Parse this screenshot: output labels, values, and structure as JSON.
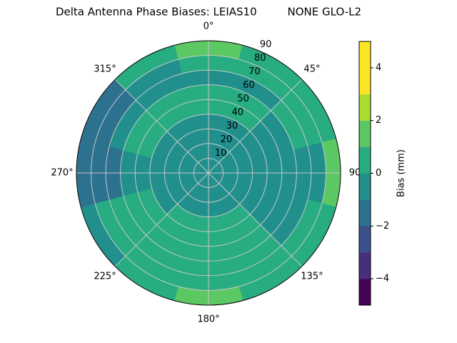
{
  "chart_data": {
    "type": "polar-contour",
    "title": "Delta Antenna Phase Biases: LEIAS10         NONE GLO-L2",
    "azimuth": [
      0,
      30,
      60,
      90,
      120,
      150,
      180,
      210,
      240,
      270,
      300,
      330
    ],
    "zenith": [
      0,
      10,
      20,
      30,
      40,
      50,
      60,
      70,
      80,
      90
    ],
    "z": [
      [
        -0.5,
        -0.5,
        -0.5,
        -0.5,
        -0.5,
        -0.5,
        -0.5,
        -0.5,
        -0.5,
        -0.5,
        -0.5,
        -0.5
      ],
      [
        -0.5,
        -0.5,
        -0.5,
        -0.5,
        -0.5,
        -0.5,
        -0.5,
        -0.5,
        -0.5,
        -0.5,
        -0.5,
        -0.5
      ],
      [
        -0.5,
        -0.5,
        -0.5,
        -0.5,
        -0.5,
        -0.5,
        -0.5,
        -0.5,
        -0.5,
        -0.5,
        -0.5,
        -0.5
      ],
      [
        -0.5,
        -0.5,
        -0.5,
        -0.5,
        -0.5,
        0.5,
        0.5,
        0.5,
        -0.5,
        -0.5,
        -0.5,
        -0.5
      ],
      [
        0.5,
        0.5,
        -0.5,
        -0.5,
        -0.5,
        0.5,
        0.5,
        0.5,
        0.5,
        -0.5,
        0.5,
        0.5
      ],
      [
        0.5,
        0.5,
        -0.5,
        -0.5,
        -0.5,
        0.5,
        0.5,
        0.5,
        0.5,
        -0.5,
        0.5,
        0.5
      ],
      [
        -0.5,
        -0.5,
        0.5,
        -0.5,
        -0.5,
        0.5,
        0.5,
        0.5,
        0.5,
        -1.5,
        -0.5,
        -0.5
      ],
      [
        0.5,
        0.5,
        0.5,
        -0.5,
        0.5,
        0.5,
        0.5,
        0.5,
        0.5,
        -1.5,
        -1.5,
        -0.5
      ],
      [
        1.5,
        0.5,
        0.5,
        1.5,
        0.5,
        0.5,
        1.5,
        0.5,
        -0.5,
        -1.5,
        -1.5,
        0.5
      ]
    ],
    "levels": [
      -5,
      -4,
      -3,
      -2,
      -1,
      0,
      1,
      2,
      3,
      4,
      5
    ],
    "colors": [
      "#450457",
      "#472f7d",
      "#3b518b",
      "#2c718e",
      "#21908d",
      "#27ad81",
      "#5cc863",
      "#aadc32",
      "#fde725",
      "#fde725"
    ],
    "rlim": [
      0,
      90
    ],
    "rticks": [
      10,
      20,
      30,
      40,
      50,
      60,
      70,
      80,
      90
    ],
    "thetaticks": [
      {
        "value": 0,
        "label": "0°"
      },
      {
        "value": 45,
        "label": "45°"
      },
      {
        "value": 90,
        "label": "90"
      },
      {
        "value": 135,
        "label": "135°"
      },
      {
        "value": 180,
        "label": "180°"
      },
      {
        "value": 225,
        "label": "225°"
      },
      {
        "value": 270,
        "label": "270°"
      },
      {
        "value": 315,
        "label": "315°"
      }
    ],
    "colorbar_label": "Bias (mm)",
    "colorbar_lim": [
      -5,
      5
    ],
    "colorbar_ticks": [
      {
        "value": -4,
        "label": "−4"
      },
      {
        "value": -2,
        "label": "−2"
      },
      {
        "value": 0,
        "label": "0"
      },
      {
        "value": 2,
        "label": "2"
      },
      {
        "value": 4,
        "label": "4"
      }
    ],
    "grid": true
  }
}
